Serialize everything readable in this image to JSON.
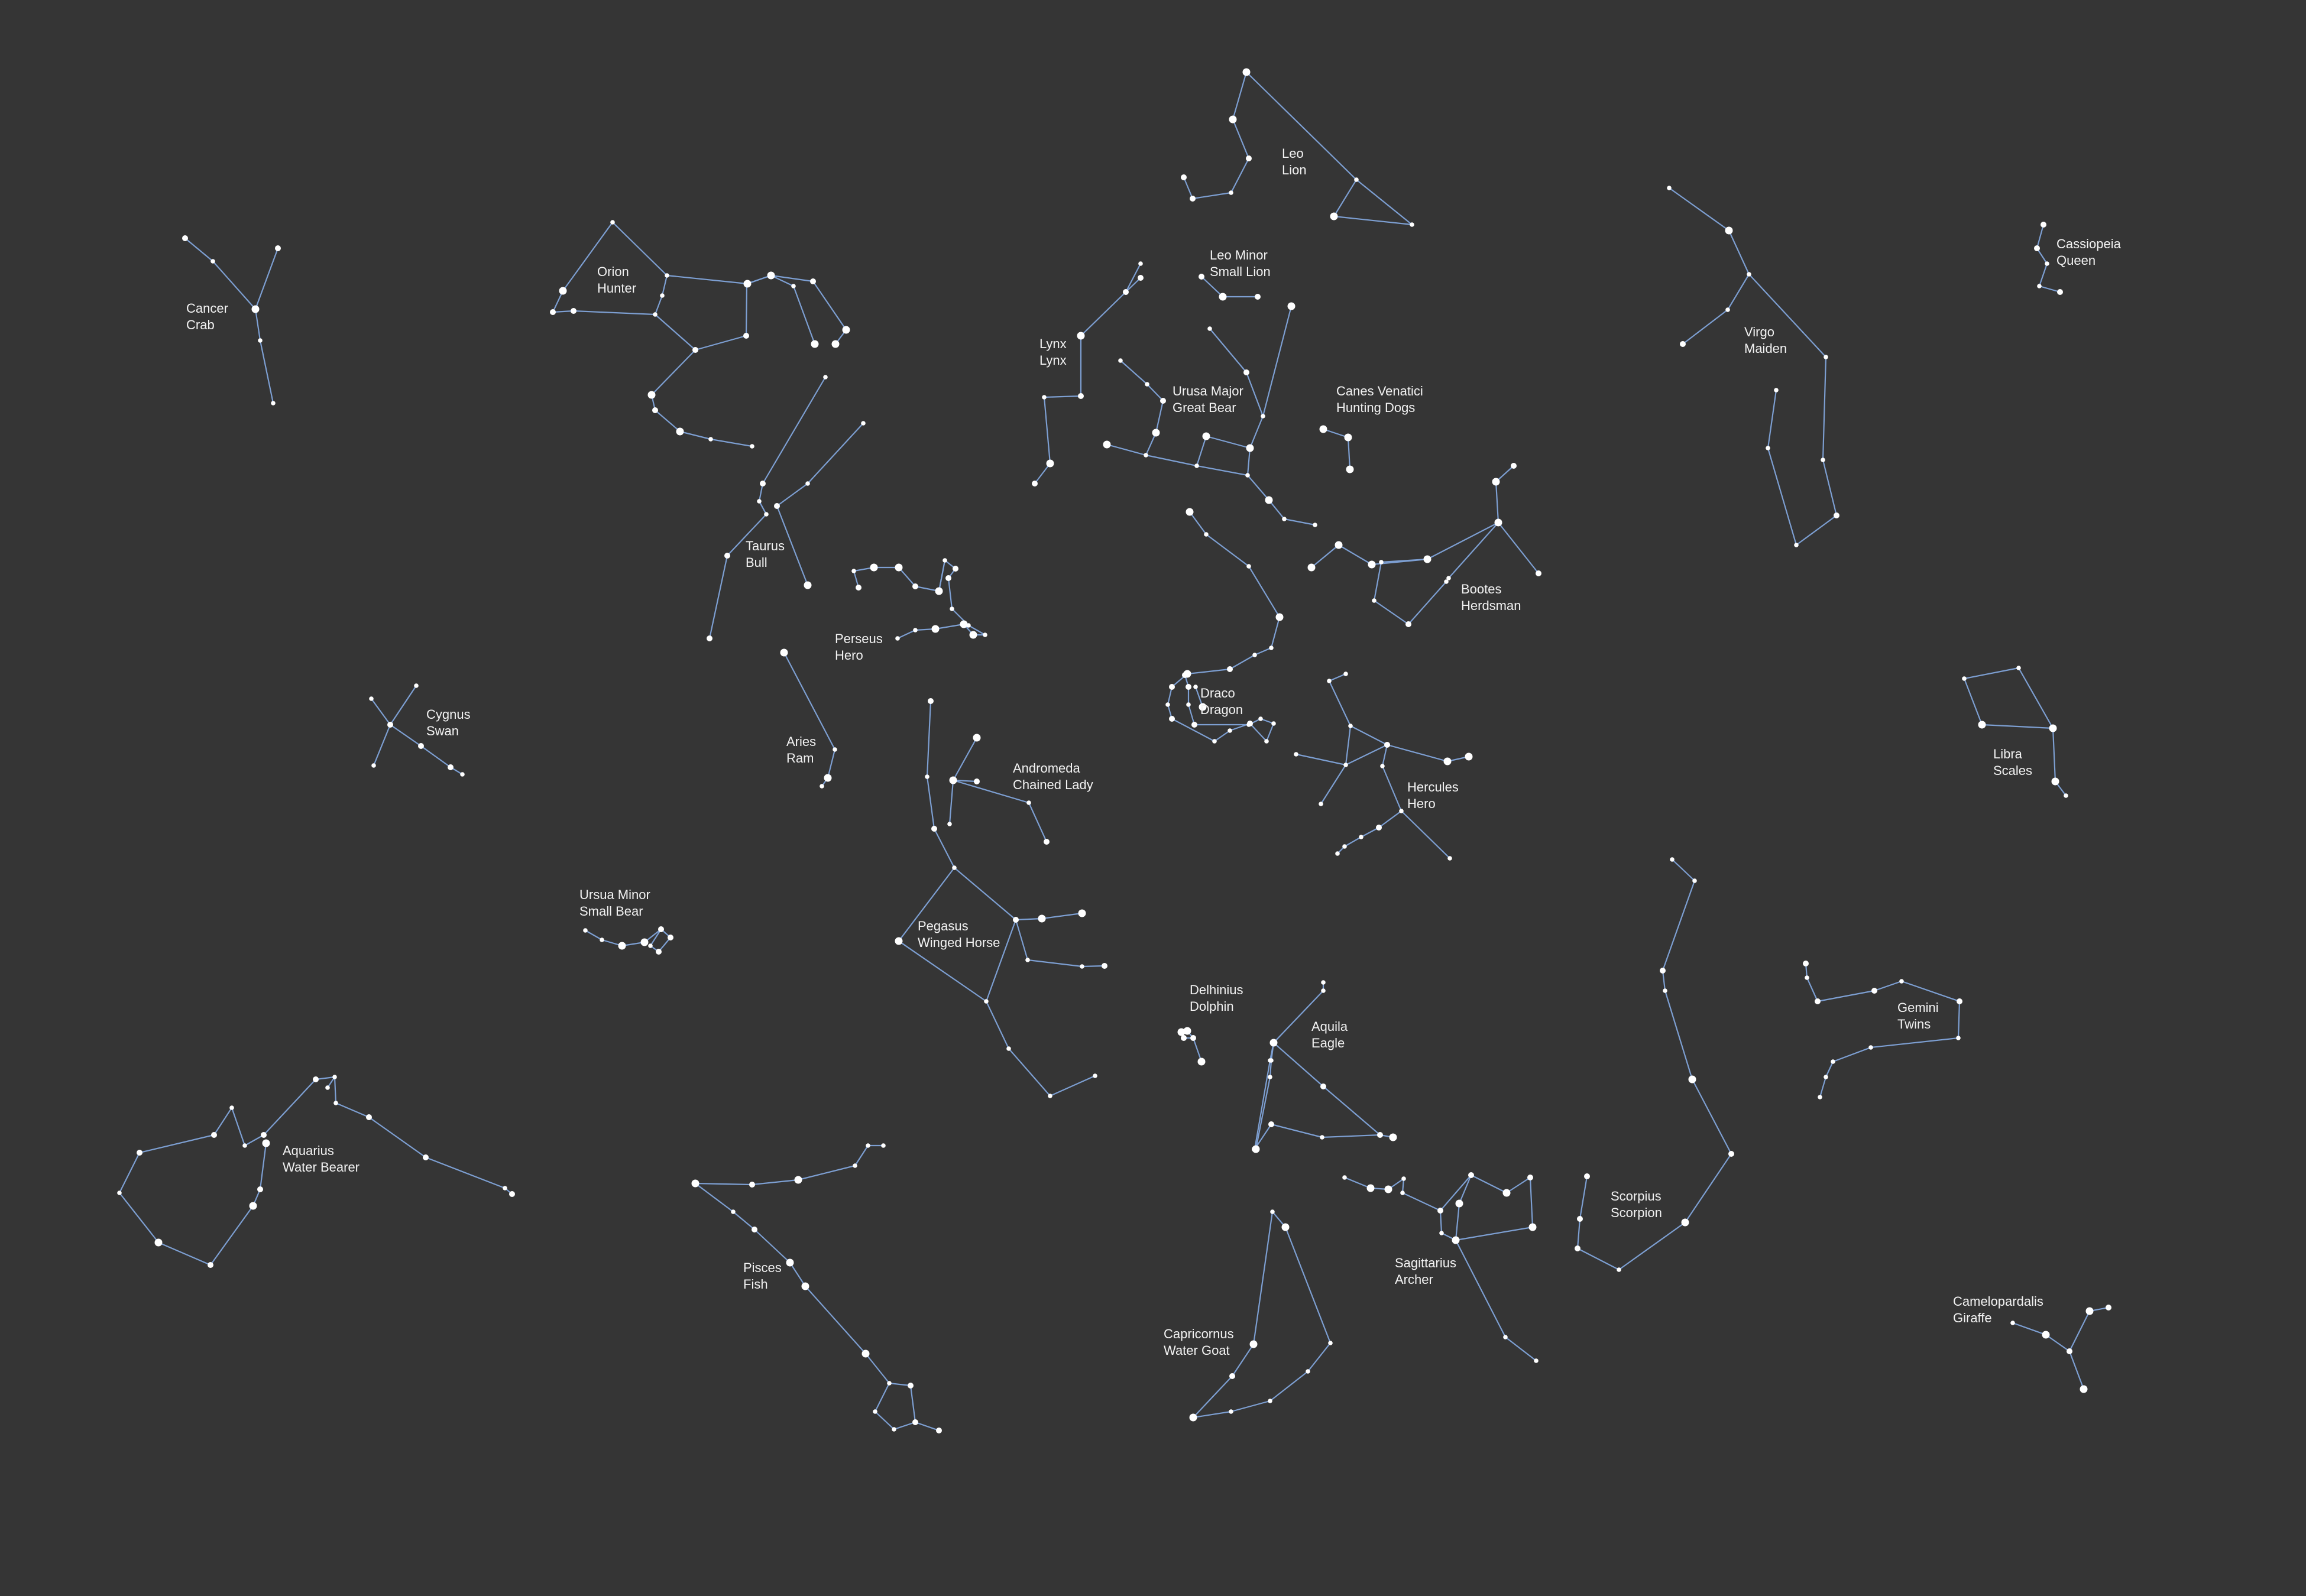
{
  "background_color": "#353535",
  "line_color": "#7d9fd2",
  "star_color": "#ffffff",
  "label_color": "#f2f2f2",
  "constellations": [
    {
      "id": "leo",
      "name": "Leo",
      "common": "Lion"
    },
    {
      "id": "cassiopeia",
      "name": "Cassiopeia",
      "common": "Queen"
    },
    {
      "id": "cancer",
      "name": "Cancer",
      "common": "Crab"
    },
    {
      "id": "orion",
      "name": "Orion",
      "common": "Hunter"
    },
    {
      "id": "leo-minor",
      "name": "Leo Minor",
      "common": "Small Lion"
    },
    {
      "id": "lynx",
      "name": "Lynx",
      "common": "Lynx"
    },
    {
      "id": "virgo",
      "name": "Virgo",
      "common": "Maiden"
    },
    {
      "id": "ursa-major",
      "name": "Urusa Major",
      "common": "Great Bear"
    },
    {
      "id": "canes-venatici",
      "name": "Canes Venatici",
      "common": "Hunting Dogs"
    },
    {
      "id": "taurus",
      "name": "Taurus",
      "common": "Bull"
    },
    {
      "id": "bootes",
      "name": "Bootes",
      "common": "Herdsman"
    },
    {
      "id": "perseus",
      "name": "Perseus",
      "common": "Hero"
    },
    {
      "id": "draco",
      "name": "Draco",
      "common": "Dragon"
    },
    {
      "id": "cygnus",
      "name": "Cygnus",
      "common": "Swan"
    },
    {
      "id": "aries",
      "name": "Aries",
      "common": "Ram"
    },
    {
      "id": "libra",
      "name": "Libra",
      "common": "Scales"
    },
    {
      "id": "andromeda",
      "name": "Andromeda",
      "common": "Chained Lady"
    },
    {
      "id": "hercules",
      "name": "Hercules",
      "common": "Hero"
    },
    {
      "id": "ursa-minor",
      "name": "Ursua Minor",
      "common": "Small Bear"
    },
    {
      "id": "pegasus",
      "name": "Pegasus",
      "common": "Winged Horse"
    },
    {
      "id": "delphinius",
      "name": "Delhinius",
      "common": "Dolphin"
    },
    {
      "id": "gemini",
      "name": "Gemini",
      "common": "Twins"
    },
    {
      "id": "aquila",
      "name": "Aquila",
      "common": "Eagle"
    },
    {
      "id": "aquarius",
      "name": "Aquarius",
      "common": "Water Bearer"
    },
    {
      "id": "scorpius",
      "name": "Scorpius",
      "common": "Scorpion"
    },
    {
      "id": "sagittarius",
      "name": "Sagittarius",
      "common": "Archer"
    },
    {
      "id": "pisces",
      "name": "Pisces",
      "common": "Fish"
    },
    {
      "id": "camelopardalis",
      "name": "Camelopardalis",
      "common": "Giraffe"
    },
    {
      "id": "capricornus",
      "name": "Capricornus",
      "common": "Water Goat"
    }
  ]
}
